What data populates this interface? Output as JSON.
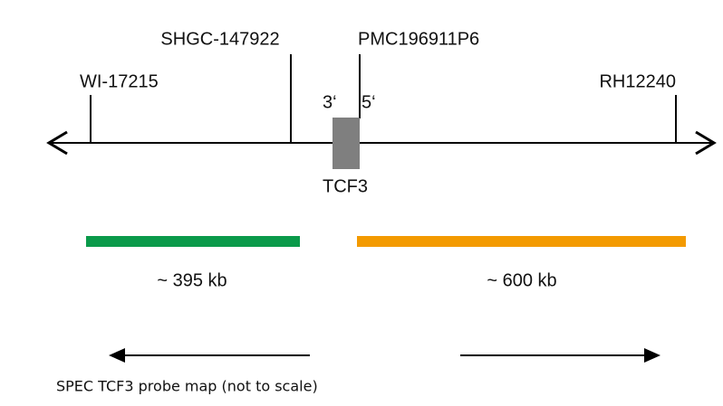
{
  "markers": [
    {
      "label": "WI-17215"
    },
    {
      "label": "SHGC-147922"
    },
    {
      "label": "PMC196911P6"
    },
    {
      "label": "RH12240"
    }
  ],
  "gene": {
    "label": "TCF3",
    "three_prime": "3‘",
    "five_prime": "5‘"
  },
  "probes": [
    {
      "label": "~ 395 kb"
    },
    {
      "label": "~ 600 kb"
    }
  ],
  "caption": "SPEC TCF3 probe map (not to scale)"
}
